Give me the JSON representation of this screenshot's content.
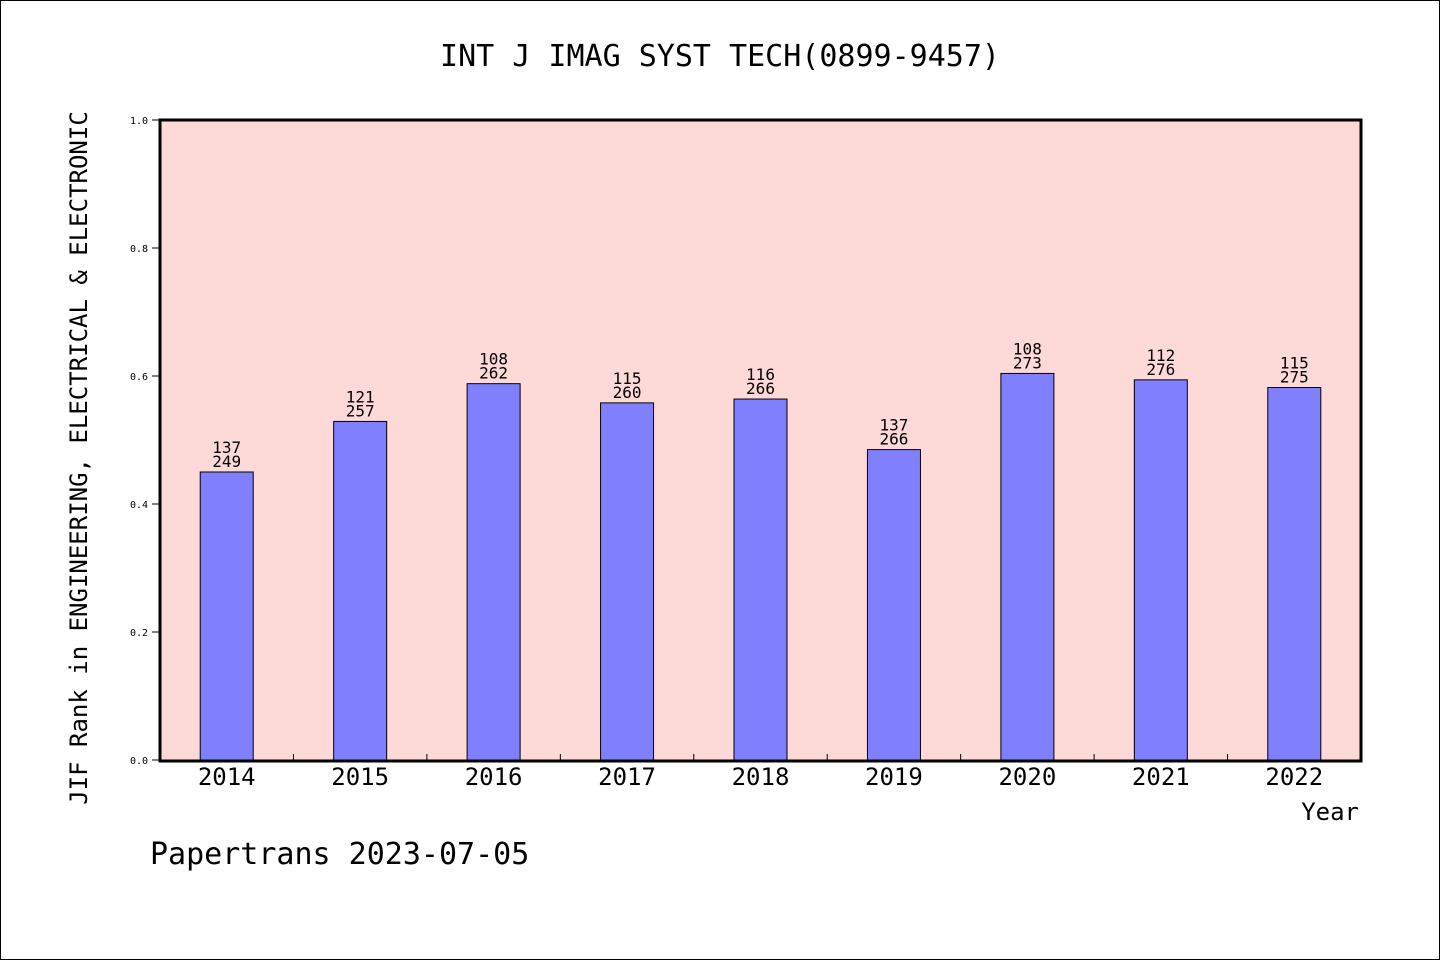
{
  "chart_data": {
    "type": "bar",
    "title": "INT J IMAG SYST TECH(0899-9457)",
    "xlabel": "Year",
    "ylabel": "JIF Rank in ENGINEERING, ELECTRICAL & ELECTRONIC",
    "ylim": [
      0,
      1.0
    ],
    "yticks": [
      "0.0",
      "0.2",
      "0.4",
      "0.6",
      "0.8",
      "1.0"
    ],
    "categories": [
      "2014",
      "2015",
      "2016",
      "2017",
      "2018",
      "2019",
      "2020",
      "2021",
      "2022"
    ],
    "values": [
      0.45,
      0.529,
      0.588,
      0.558,
      0.564,
      0.485,
      0.604,
      0.594,
      0.582
    ],
    "rank_labels": [
      "137",
      "121",
      "108",
      "115",
      "116",
      "137",
      "108",
      "112",
      "115"
    ],
    "total_labels": [
      "249",
      "257",
      "262",
      "260",
      "266",
      "266",
      "273",
      "276",
      "275"
    ],
    "grid": false,
    "colors": {
      "plot_background": "#fdd9d7",
      "bar": "#8080ff",
      "bar_edge": "#000000"
    }
  },
  "footer": "Papertrans 2023-07-05"
}
